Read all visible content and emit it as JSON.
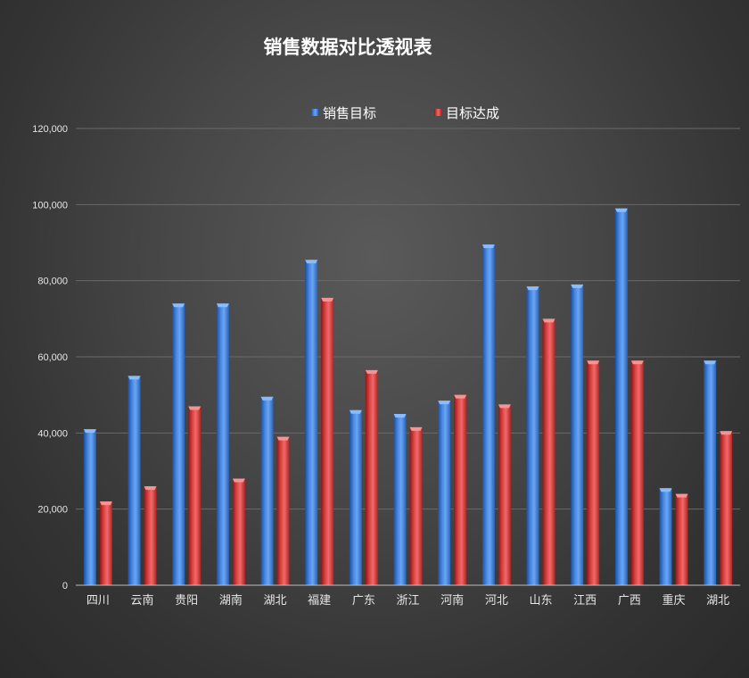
{
  "chart_data": {
    "type": "bar",
    "title": "销售数据对比透视表",
    "categories": [
      "四川",
      "云南",
      "贵阳",
      "湖南",
      "湖北",
      "福建",
      "广东",
      "浙江",
      "河南",
      "河北",
      "山东",
      "江西",
      "广西",
      "重庆",
      "湖北"
    ],
    "series": [
      {
        "name": "销售目标",
        "color": "#3f7fd6",
        "values": [
          41000,
          55000,
          74000,
          74000,
          49500,
          85500,
          46000,
          45000,
          48500,
          89500,
          78500,
          79000,
          99000,
          25500,
          59000
        ]
      },
      {
        "name": "目标达成",
        "color": "#d93a3a",
        "values": [
          22000,
          26000,
          47000,
          28000,
          39000,
          75500,
          56500,
          41500,
          50000,
          47500,
          70000,
          59000,
          59000,
          24000,
          40500
        ]
      }
    ],
    "ylim": [
      0,
      120000
    ],
    "yticks": [
      0,
      20000,
      40000,
      60000,
      80000,
      100000,
      120000
    ],
    "ytick_labels": [
      "0",
      "20,000",
      "40,000",
      "60,000",
      "80,000",
      "100,000",
      "120,000"
    ],
    "grid": true,
    "legend_position": "top"
  }
}
